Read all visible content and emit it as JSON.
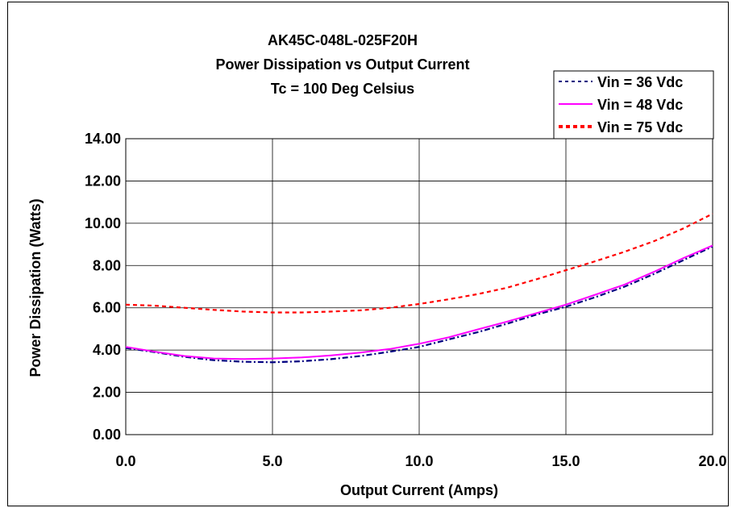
{
  "chart_data": {
    "type": "line",
    "title_lines": [
      "AK45C-048L-025F20H",
      "Power Dissipation vs Output Current",
      "Tc = 100 Deg Celsius"
    ],
    "xlabel": "Output Current (Amps)",
    "ylabel": "Power Dissipation (Watts)",
    "xlim": [
      0,
      20
    ],
    "ylim": [
      0,
      14
    ],
    "x_ticks": [
      "0.0",
      "5.0",
      "10.0",
      "15.0",
      "20.0"
    ],
    "y_ticks": [
      "0.00",
      "2.00",
      "4.00",
      "6.00",
      "8.00",
      "10.00",
      "12.00",
      "14.00"
    ],
    "grid": true,
    "legend_position": "top-right",
    "series": [
      {
        "name": "Vin = 36 Vdc",
        "color": "#000080",
        "style": "dash-dot",
        "points": [
          [
            0,
            4.1
          ],
          [
            1,
            3.9
          ],
          [
            2,
            3.68
          ],
          [
            3,
            3.52
          ],
          [
            4,
            3.45
          ],
          [
            5,
            3.42
          ],
          [
            6,
            3.47
          ],
          [
            7,
            3.57
          ],
          [
            8,
            3.72
          ],
          [
            9,
            3.92
          ],
          [
            10,
            4.15
          ],
          [
            11,
            4.5
          ],
          [
            12,
            4.85
          ],
          [
            13,
            5.25
          ],
          [
            14,
            5.68
          ],
          [
            15,
            6.05
          ],
          [
            16,
            6.5
          ],
          [
            17,
            7.0
          ],
          [
            18,
            7.6
          ],
          [
            19,
            8.25
          ],
          [
            20,
            8.9
          ]
        ]
      },
      {
        "name": "Vin = 48 Vdc",
        "color": "#ff00ff",
        "style": "solid",
        "points": [
          [
            0,
            4.15
          ],
          [
            1,
            3.92
          ],
          [
            2,
            3.72
          ],
          [
            3,
            3.6
          ],
          [
            4,
            3.58
          ],
          [
            5,
            3.6
          ],
          [
            6,
            3.65
          ],
          [
            7,
            3.75
          ],
          [
            8,
            3.88
          ],
          [
            9,
            4.05
          ],
          [
            10,
            4.3
          ],
          [
            11,
            4.6
          ],
          [
            12,
            4.98
          ],
          [
            13,
            5.35
          ],
          [
            14,
            5.75
          ],
          [
            15,
            6.15
          ],
          [
            16,
            6.62
          ],
          [
            17,
            7.1
          ],
          [
            18,
            7.7
          ],
          [
            19,
            8.35
          ],
          [
            20,
            8.95
          ]
        ]
      },
      {
        "name": "Vin = 75 Vdc",
        "color": "#ff0000",
        "style": "dashed",
        "points": [
          [
            0,
            6.15
          ],
          [
            1,
            6.1
          ],
          [
            2,
            6.0
          ],
          [
            3,
            5.9
          ],
          [
            4,
            5.82
          ],
          [
            5,
            5.78
          ],
          [
            6,
            5.78
          ],
          [
            7,
            5.82
          ],
          [
            8,
            5.88
          ],
          [
            9,
            6.0
          ],
          [
            10,
            6.18
          ],
          [
            11,
            6.4
          ],
          [
            12,
            6.65
          ],
          [
            13,
            6.95
          ],
          [
            14,
            7.35
          ],
          [
            15,
            7.78
          ],
          [
            16,
            8.2
          ],
          [
            17,
            8.65
          ],
          [
            18,
            9.15
          ],
          [
            19,
            9.75
          ],
          [
            20,
            10.45
          ]
        ]
      }
    ]
  }
}
